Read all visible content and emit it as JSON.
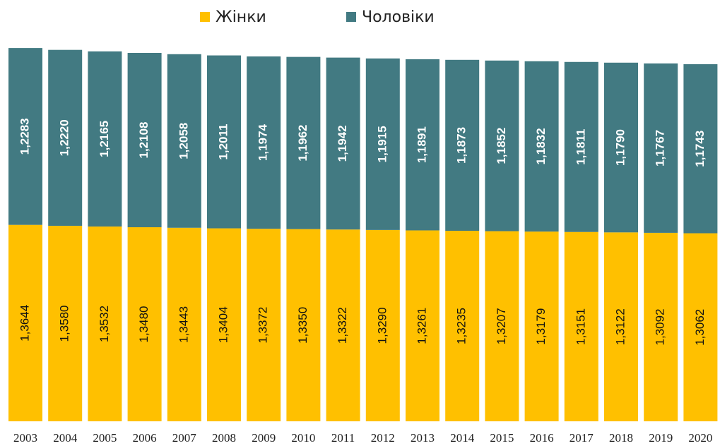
{
  "chart_data": {
    "type": "stacked_bar",
    "categories": [
      "2003",
      "2004",
      "2005",
      "2006",
      "2007",
      "2008",
      "2009",
      "2010",
      "2011",
      "2012",
      "2013",
      "2014",
      "2015",
      "2016",
      "2017",
      "2018",
      "2019",
      "2020"
    ],
    "series": [
      {
        "name": "Жінки",
        "color": "#FFC000",
        "values": [
          1.3644,
          1.358,
          1.3532,
          1.348,
          1.3443,
          1.3404,
          1.3372,
          1.335,
          1.3322,
          1.329,
          1.3261,
          1.3235,
          1.3207,
          1.3179,
          1.3151,
          1.3122,
          1.3092,
          1.3062
        ],
        "value_labels": [
          "1,3644",
          "1,3580",
          "1,3532",
          "1,3480",
          "1,3443",
          "1,3404",
          "1,3372",
          "1,3350",
          "1,3322",
          "1,3290",
          "1,3261",
          "1,3235",
          "1,3207",
          "1,3179",
          "1,3151",
          "1,3122",
          "1,3092",
          "1,3062"
        ]
      },
      {
        "name": "Чоловіки",
        "color": "#427A82",
        "values": [
          1.2283,
          1.222,
          1.2165,
          1.2108,
          1.2058,
          1.2011,
          1.1974,
          1.1962,
          1.1942,
          1.1915,
          1.1891,
          1.1873,
          1.1852,
          1.1832,
          1.1811,
          1.179,
          1.1767,
          1.1743
        ],
        "value_labels": [
          "1,2283",
          "1,2220",
          "1,2165",
          "1,2108",
          "1,2058",
          "1,2011",
          "1,1974",
          "1,1962",
          "1,1942",
          "1,1915",
          "1,1891",
          "1,1873",
          "1,1852",
          "1,1832",
          "1,1811",
          "1,1790",
          "1,1767",
          "1,1743"
        ]
      }
    ]
  }
}
